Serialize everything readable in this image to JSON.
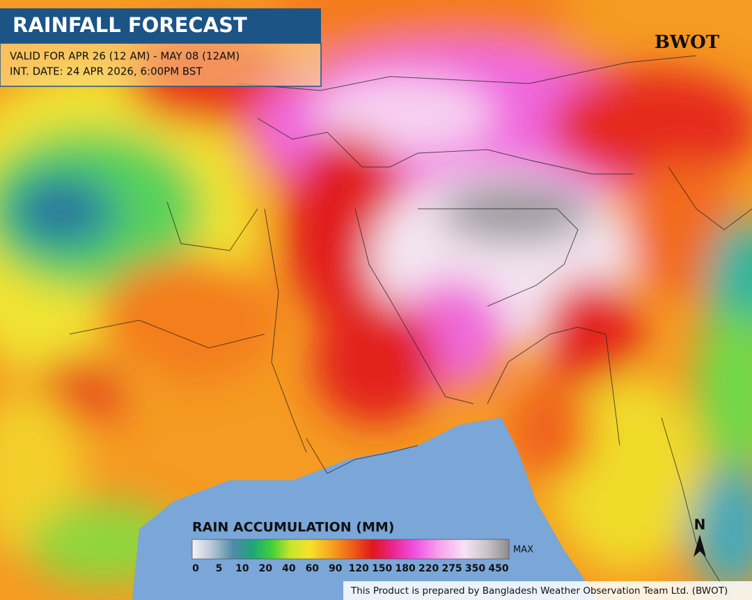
{
  "header": {
    "title": "RAINFALL FORECAST",
    "valid": "VALID FOR APR 26 (12 AM) - MAY 08 (12AM)",
    "init": "INT. DATE: 24 APR 2026, 6:00PM BST"
  },
  "logo": "BWOT",
  "legend": {
    "title": "RAIN ACCUMULATION (MM)",
    "ticks": [
      0,
      5,
      10,
      20,
      40,
      60,
      90,
      120,
      150,
      180,
      220,
      275,
      350,
      450
    ],
    "max_label": "MAX"
  },
  "north": "N",
  "footer": "This Product is prepared by Bangladesh Weather Observation Team Ltd. (BWOT)"
}
